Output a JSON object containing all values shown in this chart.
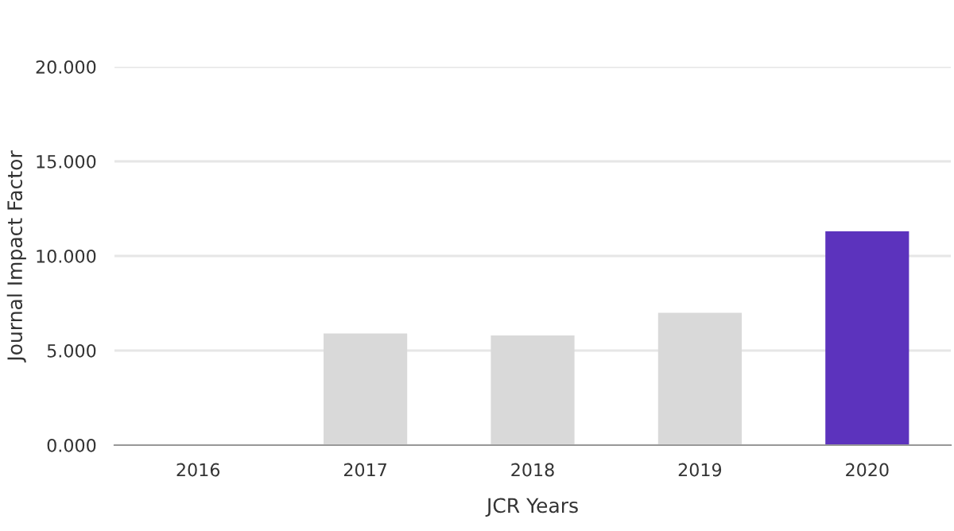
{
  "chart_data": {
    "type": "bar",
    "xlabel": "JCR Years",
    "ylabel": "Journal Impact Factor",
    "categories": [
      "2016",
      "2017",
      "2018",
      "2019",
      "2020"
    ],
    "values": [
      null,
      5.9,
      5.8,
      7.0,
      11.3
    ],
    "colors": [
      "#d9d9d9",
      "#d9d9d9",
      "#d9d9d9",
      "#d9d9d9",
      "#5c33bd"
    ],
    "ylim": [
      0,
      20
    ],
    "yticks": [
      {
        "value": 0,
        "label": "0.000"
      },
      {
        "value": 5,
        "label": "5.000"
      },
      {
        "value": 10,
        "label": "10.000"
      },
      {
        "value": 15,
        "label": "15.000"
      },
      {
        "value": 20,
        "label": "20.000"
      }
    ],
    "grid": "y",
    "legend": false
  }
}
